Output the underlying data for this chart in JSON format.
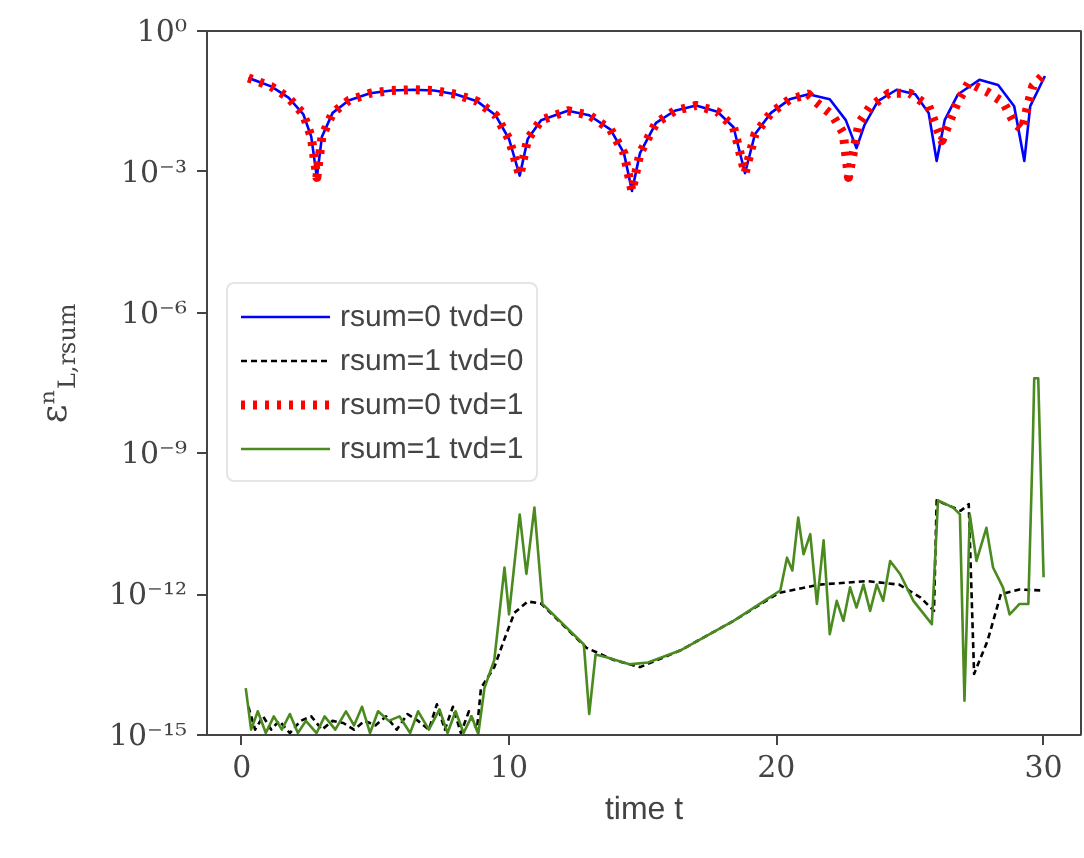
{
  "chart_data": {
    "type": "line",
    "xlabel": "time t",
    "ylabel": "εⁿ$_{L,rsum}$",
    "log": "y",
    "grid": false,
    "legend": "left",
    "xlim": [
      -1.3,
      31.4
    ],
    "xticks": [
      0,
      10,
      20,
      30
    ],
    "ylim": [
      1e-15,
      1
    ],
    "yticks": [
      {
        "value": 1e-15,
        "label": "10⁻¹⁵"
      },
      {
        "value": 1e-12,
        "label": "10⁻¹²"
      },
      {
        "value": 1e-09,
        "label": "10⁻⁹"
      },
      {
        "value": 1e-06,
        "label": "10⁻⁶"
      },
      {
        "value": 0.001,
        "label": "10⁻³"
      },
      {
        "value": 1,
        "label": "10⁰"
      }
    ],
    "series": [
      {
        "name": "rsum=0 tvd=0",
        "color": "#0000ff",
        "line_style": "solid",
        "x": [
          0.25,
          1.1,
          1.75,
          2.3,
          2.6,
          2.81,
          3.0,
          3.4,
          4.0,
          4.8,
          5.6,
          6.4,
          7.2,
          8.0,
          8.8,
          9.5,
          10.0,
          10.4,
          10.7,
          11.2,
          12.2,
          13.0,
          13.8,
          14.3,
          14.6,
          14.9,
          15.5,
          16.2,
          17.0,
          17.8,
          18.4,
          18.83,
          19.2,
          19.8,
          20.5,
          21.2,
          22.0,
          22.6,
          23.0,
          23.3,
          23.8,
          24.5,
          25.2,
          25.7,
          26.0,
          26.3,
          26.8,
          27.6,
          28.3,
          28.9,
          29.28,
          29.5,
          30.05
        ],
        "values": [
          0.1,
          0.066,
          0.038,
          0.017,
          0.0056,
          0.00076,
          0.0056,
          0.018,
          0.033,
          0.047,
          0.054,
          0.056,
          0.054,
          0.045,
          0.032,
          0.016,
          0.005,
          0.00083,
          0.005,
          0.0126,
          0.02,
          0.016,
          0.0079,
          0.0025,
          0.00039,
          0.0025,
          0.011,
          0.02,
          0.026,
          0.019,
          0.0089,
          0.00093,
          0.0063,
          0.018,
          0.035,
          0.045,
          0.035,
          0.0126,
          0.0032,
          0.01,
          0.032,
          0.056,
          0.045,
          0.018,
          0.0017,
          0.0126,
          0.045,
          0.091,
          0.071,
          0.025,
          0.0017,
          0.025,
          0.11
        ]
      },
      {
        "name": "rsum=1 tvd=0",
        "color": "#000000",
        "line_style": "dashed",
        "x": [
          0.25,
          0.5,
          0.8,
          1.1,
          1.4,
          1.8,
          2.2,
          2.6,
          3.0,
          3.4,
          3.8,
          4.2,
          4.6,
          5.0,
          5.4,
          5.8,
          6.2,
          6.6,
          7.0,
          7.3,
          7.6,
          7.9,
          8.2,
          8.5,
          8.8,
          8.95,
          9.45,
          9.8,
          10.2,
          10.7,
          11.2,
          12.9,
          13.9,
          14.9,
          16.4,
          18.4,
          20.1,
          21.6,
          23.4,
          24.6,
          25.4,
          25.9,
          26.0,
          26.9,
          27.2,
          27.4,
          27.9,
          28.4,
          29.1,
          30.0
        ],
        "values": [
          4e-15,
          1.3e-15,
          2.5e-15,
          1.3e-15,
          2e-15,
          1.1e-15,
          2e-15,
          2.5e-15,
          1.3e-15,
          2e-15,
          1.8e-15,
          1.3e-15,
          2e-15,
          1.6e-15,
          2.5e-15,
          1.3e-15,
          2.8e-15,
          2e-15,
          1.3e-15,
          4.5e-15,
          1.3e-15,
          4e-15,
          1.1e-15,
          3.2e-15,
          1.3e-15,
          1e-14,
          2.8e-14,
          1e-13,
          4e-13,
          7e-13,
          6.3e-13,
          7.2e-14,
          4e-14,
          2.8e-14,
          6.3e-14,
          2.7e-13,
          1.07e-12,
          1.6e-12,
          1.9e-12,
          1.6e-12,
          8.5e-13,
          4.4e-13,
          1e-10,
          6e-11,
          8.3e-11,
          2e-14,
          1e-13,
          1e-12,
          1.26e-12,
          1.2e-12
        ]
      },
      {
        "name": "rsum=0 tvd=1",
        "color": "#ff0000",
        "line_style": "dotted",
        "x": [
          0.25,
          1.1,
          1.75,
          2.3,
          2.6,
          2.81,
          3.0,
          3.4,
          4.0,
          4.8,
          5.6,
          6.4,
          7.2,
          8.0,
          8.8,
          9.5,
          10.0,
          10.4,
          10.7,
          11.2,
          12.2,
          13.0,
          13.8,
          14.3,
          14.6,
          14.9,
          15.5,
          16.2,
          17.0,
          17.8,
          18.4,
          18.83,
          19.2,
          19.8,
          20.5,
          21.2,
          21.5,
          22.1,
          22.5,
          22.7,
          23.1,
          23.5,
          24.2,
          25.0,
          25.7,
          25.96,
          26.2,
          26.5,
          26.8,
          27.2,
          27.9,
          28.5,
          28.9,
          29.2,
          29.4,
          29.6,
          30.05
        ],
        "values": [
          0.1,
          0.066,
          0.038,
          0.017,
          0.0056,
          0.00076,
          0.0056,
          0.018,
          0.033,
          0.047,
          0.054,
          0.056,
          0.054,
          0.045,
          0.032,
          0.016,
          0.005,
          0.00083,
          0.005,
          0.0126,
          0.02,
          0.016,
          0.0079,
          0.0025,
          0.00039,
          0.0025,
          0.011,
          0.02,
          0.026,
          0.019,
          0.0089,
          0.00093,
          0.0063,
          0.018,
          0.035,
          0.045,
          0.03,
          0.016,
          0.0068,
          0.00076,
          0.011,
          0.024,
          0.047,
          0.047,
          0.025,
          0.01,
          0.0046,
          0.0126,
          0.032,
          0.079,
          0.05,
          0.03,
          0.011,
          0.0079,
          0.025,
          0.068,
          0.126
        ]
      },
      {
        "name": "rsum=1 tvd=1",
        "color": "#4a8a1e",
        "line_style": "solid",
        "x": [
          0.15,
          0.35,
          0.6,
          0.9,
          1.2,
          1.5,
          1.8,
          2.1,
          2.4,
          2.8,
          3.1,
          3.5,
          3.9,
          4.2,
          4.5,
          4.8,
          5.1,
          5.5,
          5.9,
          6.3,
          6.6,
          7.0,
          7.4,
          7.7,
          8.0,
          8.3,
          8.6,
          8.85,
          9.08,
          9.45,
          9.83,
          10.0,
          10.4,
          10.65,
          10.95,
          11.25,
          12.8,
          13.0,
          13.24,
          13.68,
          14.5,
          15.2,
          16.4,
          18.4,
          20.15,
          20.4,
          20.6,
          20.82,
          21.02,
          21.27,
          21.52,
          21.77,
          22.0,
          22.26,
          22.51,
          22.76,
          23.0,
          23.26,
          23.51,
          23.76,
          24.0,
          24.26,
          24.63,
          25.13,
          25.82,
          26.05,
          26.62,
          26.87,
          27.04,
          27.24,
          27.49,
          27.86,
          28.11,
          28.48,
          28.73,
          29.1,
          29.43,
          29.6,
          29.65,
          29.8,
          30.0
        ],
        "values": [
          1e-14,
          1.3e-15,
          3.2e-15,
          1.1e-15,
          2.5e-15,
          1.3e-15,
          2.8e-15,
          1.1e-15,
          2e-15,
          1.1e-15,
          2.5e-15,
          1.3e-15,
          3.2e-15,
          1.6e-15,
          4e-15,
          1.1e-15,
          3.2e-15,
          2e-15,
          2.5e-15,
          1.1e-15,
          3.2e-15,
          1.3e-15,
          3.5e-15,
          1.1e-15,
          3.2e-15,
          1.1e-15,
          2.5e-15,
          1.05e-15,
          1e-14,
          4e-14,
          3.7e-12,
          3.7e-13,
          5e-11,
          2.7e-12,
          7e-11,
          6.2e-13,
          8.5e-14,
          2.8e-15,
          5.2e-14,
          4.5e-14,
          3.2e-14,
          3.5e-14,
          6.3e-14,
          2.7e-13,
          1.2e-12,
          6e-12,
          3.2e-12,
          4.3e-11,
          7.1e-12,
          1.9e-11,
          6.2e-13,
          1.4e-11,
          1.4e-13,
          7.2e-13,
          2.7e-13,
          1.4e-12,
          5.2e-13,
          1.6e-12,
          4.4e-13,
          1.6e-12,
          7.2e-13,
          5.1e-12,
          2.7e-12,
          7.2e-13,
          2.3e-13,
          1e-10,
          7e-11,
          5e-11,
          5.4e-15,
          5e-11,
          5.1e-12,
          2.6e-11,
          3.7e-12,
          1.4e-12,
          3.7e-13,
          6.2e-13,
          6.2e-13,
          2e-09,
          4e-08,
          4e-08,
          2.3e-12
        ]
      }
    ]
  }
}
